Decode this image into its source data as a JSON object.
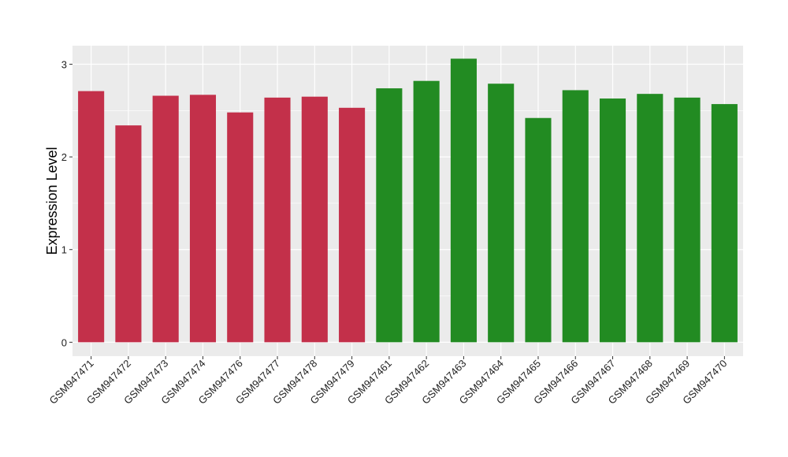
{
  "chart_data": {
    "type": "bar",
    "title": "",
    "xlabel": "",
    "ylabel": "Expression Level",
    "ylim": [
      -0.15,
      3.2
    ],
    "yticks": [
      0,
      1,
      2,
      3
    ],
    "grid": true,
    "legend": "none",
    "categories": [
      "GSM947471",
      "GSM947472",
      "GSM947473",
      "GSM947474",
      "GSM947476",
      "GSM947477",
      "GSM947478",
      "GSM947479",
      "GSM947461",
      "GSM947462",
      "GSM947463",
      "GSM947464",
      "GSM947465",
      "GSM947466",
      "GSM947467",
      "GSM947468",
      "GSM947469",
      "GSM947470"
    ],
    "values": [
      2.71,
      2.34,
      2.66,
      2.67,
      2.48,
      2.64,
      2.65,
      2.53,
      2.74,
      2.82,
      3.06,
      2.79,
      2.42,
      2.72,
      2.63,
      2.68,
      2.64,
      2.57
    ],
    "groups": [
      "a",
      "a",
      "a",
      "a",
      "a",
      "a",
      "a",
      "a",
      "b",
      "b",
      "b",
      "b",
      "b",
      "b",
      "b",
      "b",
      "b",
      "b"
    ],
    "colors": {
      "a": "#C3304A",
      "b": "#228B22"
    },
    "panel_background": "#EBEBEB",
    "grid_color": "#FFFFFF"
  }
}
